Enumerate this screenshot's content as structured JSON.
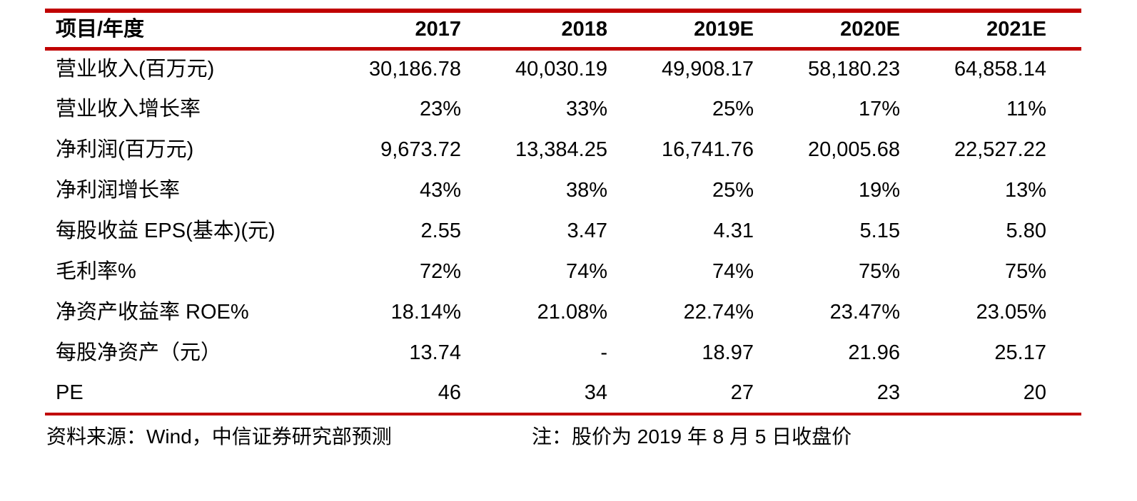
{
  "colors": {
    "rule_red": "#C00000",
    "text": "#000000",
    "background": "#FFFFFF"
  },
  "table": {
    "header": {
      "label": "项目/年度",
      "columns": [
        "2017",
        "2018",
        "2019E",
        "2020E",
        "2021E"
      ]
    },
    "rows": [
      {
        "label": "营业收入(百万元)",
        "values": [
          "30,186.78",
          "40,030.19",
          "49,908.17",
          "58,180.23",
          "64,858.14"
        ]
      },
      {
        "label": "营业收入增长率",
        "values": [
          "23%",
          "33%",
          "25%",
          "17%",
          "11%"
        ]
      },
      {
        "label": "净利润(百万元)",
        "values": [
          "9,673.72",
          "13,384.25",
          "16,741.76",
          "20,005.68",
          "22,527.22"
        ]
      },
      {
        "label": "净利润增长率",
        "values": [
          "43%",
          "38%",
          "25%",
          "19%",
          "13%"
        ]
      },
      {
        "label": "每股收益 EPS(基本)(元)",
        "values": [
          "2.55",
          "3.47",
          "4.31",
          "5.15",
          "5.80"
        ]
      },
      {
        "label": "毛利率%",
        "values": [
          "72%",
          "74%",
          "74%",
          "75%",
          "75%"
        ]
      },
      {
        "label": "净资产收益率 ROE%",
        "values": [
          "18.14%",
          "21.08%",
          "22.74%",
          "23.47%",
          "23.05%"
        ]
      },
      {
        "label": "每股净资产（元）",
        "values": [
          "13.74",
          "-",
          "18.97",
          "21.96",
          "25.17"
        ]
      },
      {
        "label": "PE",
        "values": [
          "46",
          "34",
          "27",
          "23",
          "20"
        ]
      }
    ]
  },
  "footer": {
    "source": "资料来源：Wind，中信证券研究部预测",
    "note": "注：股价为 2019 年 8 月 5 日收盘价"
  }
}
